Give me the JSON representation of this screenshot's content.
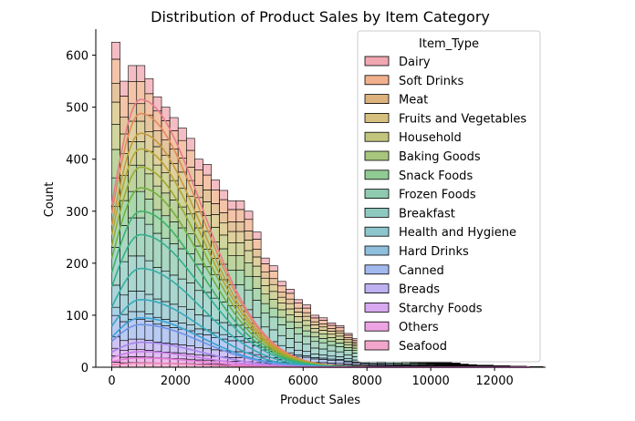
{
  "chart_data": {
    "type": "histogram",
    "multiple": "stack",
    "kde": true,
    "title": "Distribution of Product Sales by Item Category",
    "xlabel": "Product Sales",
    "ylabel": "Count",
    "xlim": [
      -500,
      13600
    ],
    "ylim": [
      0,
      650
    ],
    "xticks": [
      0,
      2000,
      4000,
      6000,
      8000,
      10000,
      12000
    ],
    "yticks": [
      0,
      100,
      200,
      300,
      400,
      500,
      600
    ],
    "bin_width": 260,
    "bin_start": 0,
    "totals": [
      625,
      550,
      580,
      580,
      555,
      520,
      500,
      480,
      460,
      440,
      400,
      390,
      360,
      340,
      320,
      320,
      300,
      260,
      210,
      195,
      165,
      150,
      130,
      120,
      100,
      95,
      85,
      80,
      65,
      55,
      45,
      40,
      35,
      30,
      22,
      20,
      16,
      14,
      12,
      10,
      9,
      8,
      6,
      5,
      4,
      4,
      3,
      3,
      2,
      2,
      1,
      1
    ],
    "legend": {
      "title": "Item_Type",
      "position": "upper-right",
      "entries": [
        {
          "label": "Dairy",
          "color": "#f0a7b0"
        },
        {
          "label": "Soft Drinks",
          "color": "#f0b08c"
        },
        {
          "label": "Meat",
          "color": "#dcb27e"
        },
        {
          "label": "Fruits and Vegetables",
          "color": "#d6c07e"
        },
        {
          "label": "Household",
          "color": "#c2c57c"
        },
        {
          "label": "Baking Goods",
          "color": "#a8c67e"
        },
        {
          "label": "Snack Foods",
          "color": "#8fcb93"
        },
        {
          "label": "Frozen Foods",
          "color": "#8ecaae"
        },
        {
          "label": "Breakfast",
          "color": "#8ec9bf"
        },
        {
          "label": "Health and Hygiene",
          "color": "#8ec6cd"
        },
        {
          "label": "Hard Drinks",
          "color": "#8ec0de"
        },
        {
          "label": "Canned",
          "color": "#a2b9ee"
        },
        {
          "label": "Breads",
          "color": "#bfb0f2"
        },
        {
          "label": "Starchy Foods",
          "color": "#d8a8f0"
        },
        {
          "label": "Others",
          "color": "#eca4e4"
        },
        {
          "label": "Seafood",
          "color": "#f2a6cc"
        }
      ]
    },
    "kde_peaks": [
      {
        "category": "Dairy",
        "peak": 515,
        "color": "#e87a8e"
      },
      {
        "category": "Soft Drinks",
        "peak": 488,
        "color": "#e48a55"
      },
      {
        "category": "Meat",
        "peak": 450,
        "color": "#c89a3e"
      },
      {
        "category": "Fruits and Vegetables",
        "peak": 420,
        "color": "#b8a531"
      },
      {
        "category": "Household",
        "peak": 385,
        "color": "#9aab30"
      },
      {
        "category": "Baking Goods",
        "peak": 345,
        "color": "#71b13e"
      },
      {
        "category": "Snack Foods",
        "peak": 300,
        "color": "#3fb16a"
      },
      {
        "category": "Frozen Foods",
        "peak": 255,
        "color": "#33b08e"
      },
      {
        "category": "Breakfast",
        "peak": 190,
        "color": "#34ada6"
      },
      {
        "category": "Health and Hygiene",
        "peak": 130,
        "color": "#36a9bb"
      },
      {
        "category": "Hard Drinks",
        "peak": 95,
        "color": "#3aa1d1"
      },
      {
        "category": "Canned",
        "peak": 82,
        "color": "#6f93e8"
      },
      {
        "category": "Breads",
        "peak": 48,
        "color": "#a486ec"
      },
      {
        "category": "Starchy Foods",
        "peak": 30,
        "color": "#c97fe8"
      },
      {
        "category": "Others",
        "peak": 18,
        "color": "#e27ad8"
      },
      {
        "category": "Seafood",
        "peak": 8,
        "color": "#ea7fb8"
      }
    ],
    "grid": false
  }
}
